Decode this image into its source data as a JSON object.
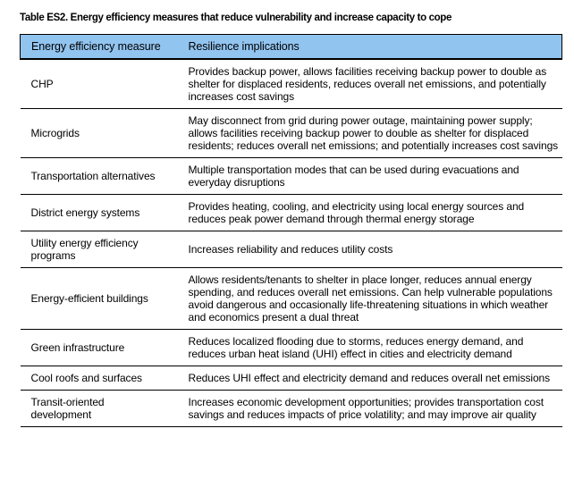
{
  "title": "Table ES2. Energy efficiency measures that reduce vulnerability and increase capacity to cope",
  "colors": {
    "header_background": "#92C4F0",
    "border": "#000000",
    "text": "#000000",
    "page_background": "#ffffff"
  },
  "table": {
    "headers": [
      "Energy efficiency measure",
      "Resilience implications"
    ],
    "rows": [
      {
        "measure": "CHP",
        "implication": "Provides backup power, allows facilities receiving backup power to double as shelter for displaced residents, reduces overall net emissions, and potentially increases cost savings"
      },
      {
        "measure": "Microgrids",
        "implication": "May disconnect from grid during power outage, maintaining power supply; allows facilities receiving backup power to double as shelter for displaced residents; reduces overall net emissions; and potentially increases cost savings"
      },
      {
        "measure": "Transportation alternatives",
        "implication": "Multiple transportation modes that can be used during evacuations and everyday disruptions"
      },
      {
        "measure": "District energy systems",
        "implication": "Provides heating, cooling, and electricity using local energy sources and reduces peak power demand through thermal energy storage"
      },
      {
        "measure": "Utility energy efficiency programs",
        "implication": "Increases reliability and reduces utility costs"
      },
      {
        "measure": "Energy-efficient buildings",
        "implication": "Allows residents/tenants to shelter in place longer, reduces annual energy spending, and reduces overall net emissions. Can help vulnerable populations avoid dangerous and occasionally life-threatening situations in which weather and economics present a dual threat"
      },
      {
        "measure": "Green infrastructure",
        "implication": "Reduces localized flooding due to storms, reduces energy demand, and reduces urban heat island (UHI) effect in cities and electricity demand"
      },
      {
        "measure": "Cool roofs and surfaces",
        "implication": "Reduces UHI effect and electricity demand and reduces overall net emissions"
      },
      {
        "measure": "Transit-oriented development",
        "implication": "Increases economic development opportunities; provides transportation cost savings and reduces impacts of price volatility; and may improve air quality"
      }
    ]
  }
}
